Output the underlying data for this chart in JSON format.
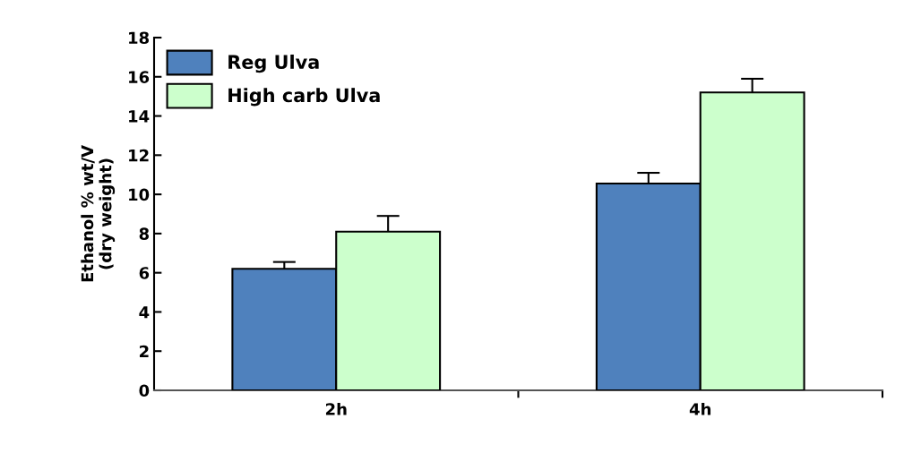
{
  "chart_data": {
    "type": "bar",
    "ylabel": "Ethanol % wt/V\n(dry weight)",
    "categories": [
      "2h",
      "4h"
    ],
    "series": [
      {
        "name": "Reg Ulva",
        "color": "#4f81bd",
        "values": [
          6.2,
          10.55
        ],
        "errors": [
          0.35,
          0.55
        ]
      },
      {
        "name": "High carb Ulva",
        "color": "#ccffcc",
        "values": [
          8.1,
          15.2
        ],
        "errors": [
          0.8,
          0.7
        ]
      }
    ],
    "ylim": [
      0,
      18
    ],
    "yticks": [
      0,
      2,
      4,
      6,
      8,
      10,
      12,
      14,
      16,
      18
    ],
    "grid": false,
    "legend": "top left"
  }
}
